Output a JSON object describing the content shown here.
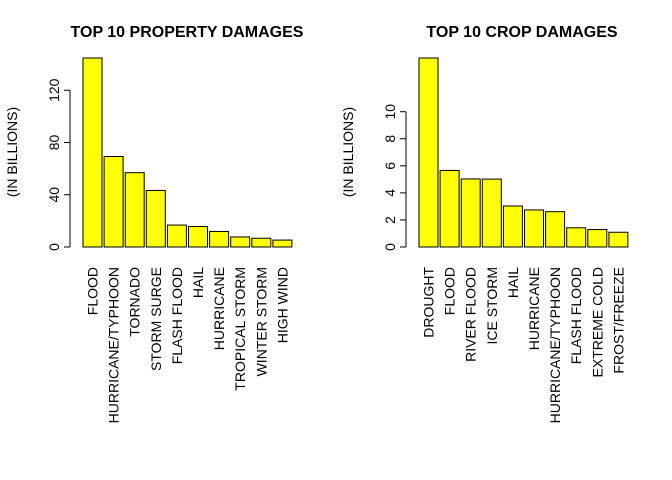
{
  "chart_data": [
    {
      "type": "bar",
      "title": "TOP 10 PROPERTY DAMAGES",
      "ylabel": "(IN BILLIONS)",
      "xlabel": "",
      "categories": [
        "FLOOD",
        "HURRICANE/TYPHOON",
        "TORNADO",
        "STORM SURGE",
        "FLASH FLOOD",
        "HAIL",
        "HURRICANE",
        "TROPICAL STORM",
        "WINTER STORM",
        "HIGH WIND"
      ],
      "values": [
        144.7,
        69.3,
        56.9,
        43.3,
        16.8,
        15.7,
        11.9,
        7.7,
        6.7,
        5.3
      ],
      "yticks": [
        0,
        40,
        80,
        120
      ],
      "ylim": [
        0,
        144.7
      ],
      "bar_color": "#ffff00",
      "grid": false
    },
    {
      "type": "bar",
      "title": "TOP 10 CROP DAMAGES",
      "ylabel": "(IN BILLIONS)",
      "xlabel": "",
      "categories": [
        "DROUGHT",
        "FLOOD",
        "RIVER FLOOD",
        "ICE STORM",
        "HAIL",
        "HURRICANE",
        "HURRICANE/TYPHOON",
        "FLASH FLOOD",
        "EXTREME COLD",
        "FROST/FREEZE"
      ],
      "values": [
        13.97,
        5.66,
        5.03,
        5.02,
        3.03,
        2.74,
        2.61,
        1.42,
        1.29,
        1.09
      ],
      "yticks": [
        0,
        2,
        4,
        6,
        8,
        10
      ],
      "ylim": [
        0,
        13.97
      ],
      "bar_color": "#ffff00",
      "grid": false
    }
  ]
}
